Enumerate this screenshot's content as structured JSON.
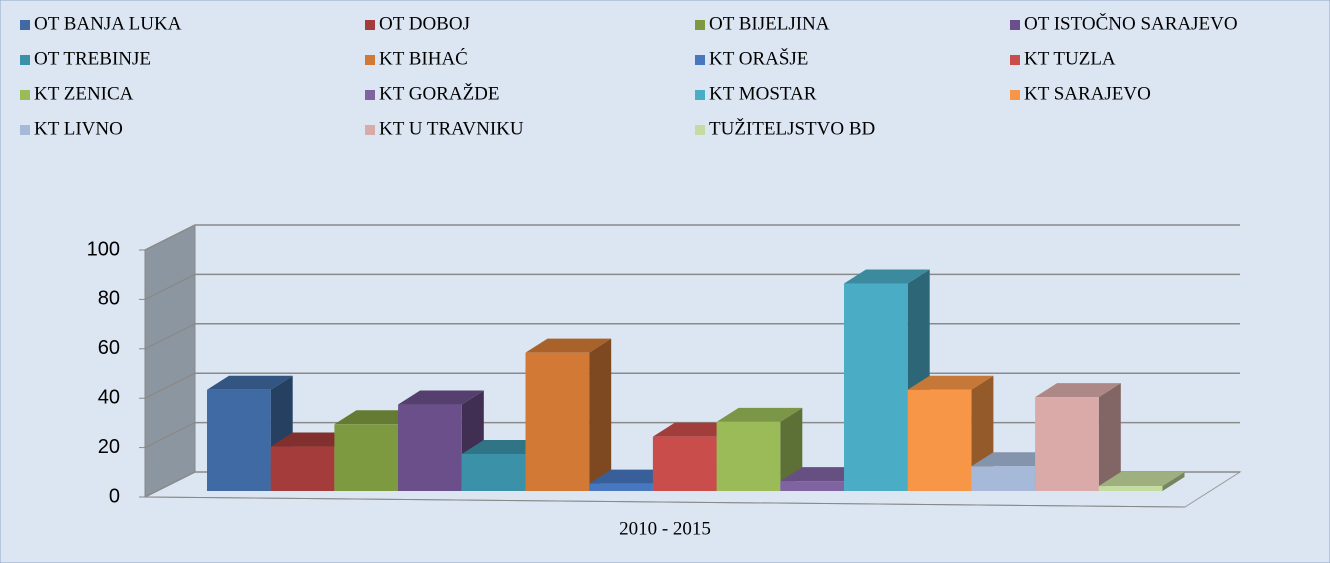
{
  "chart_data": {
    "type": "bar3d",
    "categories": [
      "2010 - 2015"
    ],
    "ylim": [
      0,
      100
    ],
    "yticks": [
      0,
      20,
      40,
      60,
      80,
      100
    ],
    "grid": true,
    "series": [
      {
        "name": "OT BANJA LUKA",
        "color": "#3f6aa3",
        "values": [
          41
        ]
      },
      {
        "name": "OT DOBOJ",
        "color": "#a33c3a",
        "values": [
          18
        ]
      },
      {
        "name": "OT BIJELJINA",
        "color": "#7e9a41",
        "values": [
          27
        ]
      },
      {
        "name": "OT ISTOČNO SARAJEVO",
        "color": "#6a4f8a",
        "values": [
          35
        ]
      },
      {
        "name": "OT TREBINJE",
        "color": "#3b92a8",
        "values": [
          15
        ]
      },
      {
        "name": "KT BIHAĆ",
        "color": "#d27a35",
        "values": [
          56
        ]
      },
      {
        "name": "KT ORAŠJE",
        "color": "#4677bf",
        "values": [
          3
        ]
      },
      {
        "name": "KT TUZLA",
        "color": "#c94d4b",
        "values": [
          22
        ]
      },
      {
        "name": "KT ZENICA",
        "color": "#9bbb59",
        "values": [
          28
        ]
      },
      {
        "name": "KT GORAŽDE",
        "color": "#8064a2",
        "values": [
          4
        ]
      },
      {
        "name": "KT MOSTAR",
        "color": "#4bacc6",
        "values": [
          84
        ]
      },
      {
        "name": "KT SARAJEVO",
        "color": "#f79646",
        "values": [
          41
        ]
      },
      {
        "name": "KT LIVNO",
        "color": "#a6b9d8",
        "values": [
          10
        ]
      },
      {
        "name": "KT  U TRAVNIKU",
        "color": "#d9aaa8",
        "values": [
          38
        ]
      },
      {
        "name": "TUŽITELJSTVO BD",
        "color": "#c5dca0",
        "values": [
          2
        ]
      }
    ]
  }
}
